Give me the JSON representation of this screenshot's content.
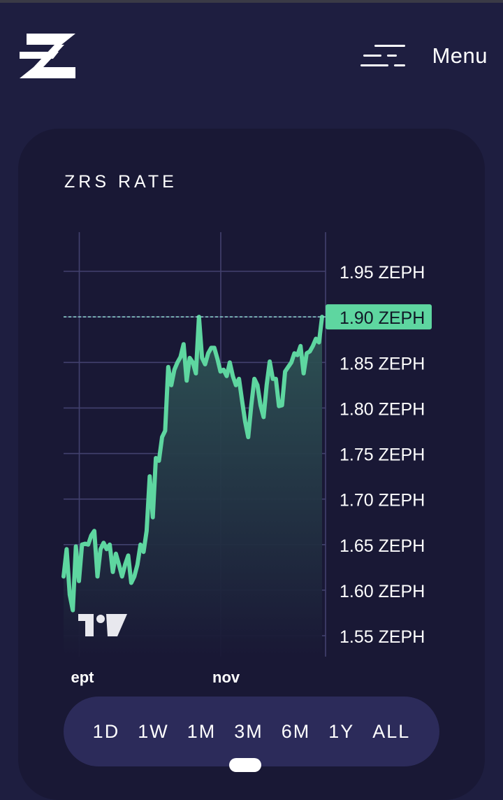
{
  "header": {
    "logo_icon": "zephyr-logo-icon",
    "menu_icon": "hamburger-menu-icon",
    "menu_label": "Menu"
  },
  "card": {
    "title": "ZRS RATE"
  },
  "chart_data": {
    "type": "area",
    "y_unit": "ZEPH",
    "yticks": [
      "1.55 ZEPH",
      "1.60 ZEPH",
      "1.65 ZEPH",
      "1.70 ZEPH",
      "1.75 ZEPH",
      "1.80 ZEPH",
      "1.85 ZEPH",
      "1.90 ZEPH",
      "1.95 ZEPH"
    ],
    "ytick_values": [
      1.55,
      1.6,
      1.65,
      1.7,
      1.75,
      1.8,
      1.85,
      1.9,
      1.95
    ],
    "xticks": [
      "ept",
      "nov"
    ],
    "xtick_positions": [
      0.06,
      0.6
    ],
    "ylim": [
      1.527,
      1.993
    ],
    "current_value_label": "1.90 ZEPH",
    "current_value": 1.9,
    "line_color": "#5ed6a0",
    "grid": true,
    "series": [
      {
        "values": [
          1.615,
          1.645,
          1.595,
          1.578,
          1.648,
          1.61,
          1.65,
          1.651,
          1.65,
          1.66,
          1.665,
          1.615,
          1.645,
          1.652,
          1.645,
          1.65,
          1.62,
          1.64,
          1.628,
          1.615,
          1.628,
          1.638,
          1.608,
          1.615,
          1.628,
          1.65,
          1.642,
          1.665,
          1.725,
          1.68,
          1.745,
          1.742,
          1.768,
          1.775,
          1.845,
          1.825,
          1.842,
          1.85,
          1.856,
          1.87,
          1.83,
          1.855,
          1.85,
          1.838,
          1.9,
          1.855,
          1.848,
          1.86,
          1.866,
          1.866,
          1.854,
          1.84,
          1.842,
          1.835,
          1.85,
          1.835,
          1.825,
          1.832,
          1.808,
          1.785,
          1.768,
          1.803,
          1.832,
          1.825,
          1.803,
          1.79,
          1.825,
          1.851,
          1.832,
          1.832,
          1.802,
          1.803,
          1.84,
          1.845,
          1.85,
          1.86,
          1.858,
          1.868,
          1.838,
          1.86,
          1.862,
          1.868,
          1.876,
          1.872,
          1.9
        ]
      }
    ]
  },
  "range_selector": {
    "options": [
      "1D",
      "1W",
      "1M",
      "3M",
      "6M",
      "1Y",
      "ALL"
    ],
    "selected": "3M"
  },
  "watermark_icon": "tradingview-logo-icon"
}
